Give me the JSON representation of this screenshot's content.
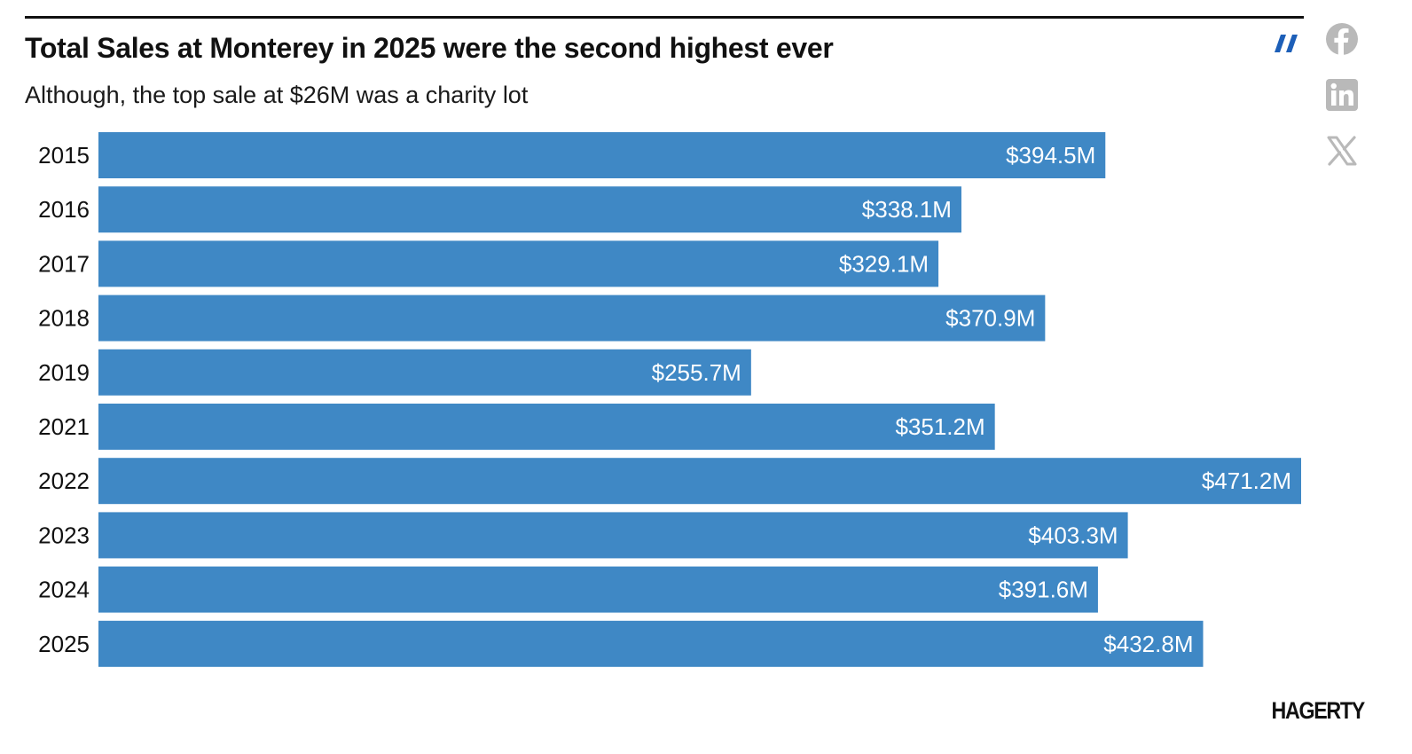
{
  "header": {
    "title": "Total Sales at Monterey in 2025 were the second highest ever",
    "subtitle": "Although, the top sale at $26M was a charity lot"
  },
  "share": {
    "items": [
      {
        "name": "facebook",
        "icon": "facebook-icon"
      },
      {
        "name": "linkedin",
        "icon": "linkedin-icon"
      },
      {
        "name": "x",
        "icon": "x-icon"
      }
    ],
    "icon_color": "#b9b9b9"
  },
  "brand": {
    "logo_text": "HAGERTY",
    "mark_color": "#1d5fb8"
  },
  "colors": {
    "bar": "#3f88c5",
    "label_on_bar": "#ffffff",
    "text": "#111111"
  },
  "chart_data": {
    "type": "bar",
    "orientation": "horizontal",
    "title": "Total Sales at Monterey in 2025 were the second highest ever",
    "subtitle": "Although, the top sale at $26M was a charity lot",
    "xlabel": "",
    "ylabel": "",
    "unit": "$M",
    "grid": false,
    "xlim": [
      0,
      471.2
    ],
    "categories": [
      "2015",
      "2016",
      "2017",
      "2018",
      "2019",
      "2021",
      "2022",
      "2023",
      "2024",
      "2025"
    ],
    "values": [
      394.5,
      338.1,
      329.1,
      370.9,
      255.7,
      351.2,
      471.2,
      403.3,
      391.6,
      432.8
    ],
    "data_labels": [
      "$394.5M",
      "$338.1M",
      "$329.1M",
      "$370.9M",
      "$255.7M",
      "$351.2M",
      "$471.2M",
      "$403.3M",
      "$391.6M",
      "$432.8M"
    ]
  }
}
